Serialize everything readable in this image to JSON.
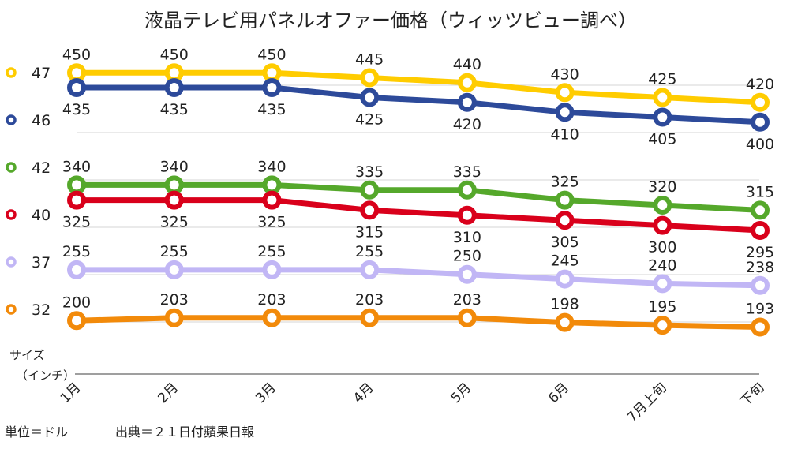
{
  "chart_data": {
    "type": "line",
    "title": "液晶テレビ用パネルオファー価格（ウィッツビュー調べ）",
    "categories": [
      "1月",
      "2月",
      "3月",
      "4月",
      "5月",
      "6月",
      "7月上旬",
      "下旬"
    ],
    "ylabel": "サイズ\n（インチ）",
    "y_axis_label_lines": [
      "サイズ",
      "（インチ）"
    ],
    "legend_position": "left",
    "grid": true,
    "footnote_unit": "単位＝ドル",
    "footnote_source": "出典＝２１日付蘋果日報",
    "series": [
      {
        "name": "47",
        "color": "#ffcc00",
        "values": [
          450,
          450,
          450,
          445,
          440,
          430,
          425,
          420
        ],
        "label_side": "above"
      },
      {
        "name": "46",
        "color": "#2d4a9a",
        "values": [
          435,
          435,
          435,
          425,
          420,
          410,
          405,
          400
        ],
        "label_side": "below"
      },
      {
        "name": "42",
        "color": "#55a82b",
        "values": [
          340,
          340,
          340,
          335,
          335,
          325,
          320,
          315
        ],
        "label_side": "above"
      },
      {
        "name": "40",
        "color": "#d9001b",
        "values": [
          325,
          325,
          325,
          315,
          310,
          305,
          300,
          295
        ],
        "label_side": "below"
      },
      {
        "name": "37",
        "color": "#c1b6f5",
        "values": [
          255,
          255,
          255,
          255,
          250,
          245,
          240,
          238
        ],
        "label_side": "above"
      },
      {
        "name": "32",
        "color": "#f28a0a",
        "values": [
          200,
          203,
          203,
          203,
          203,
          198,
          195,
          193
        ],
        "label_side": "above"
      }
    ]
  }
}
